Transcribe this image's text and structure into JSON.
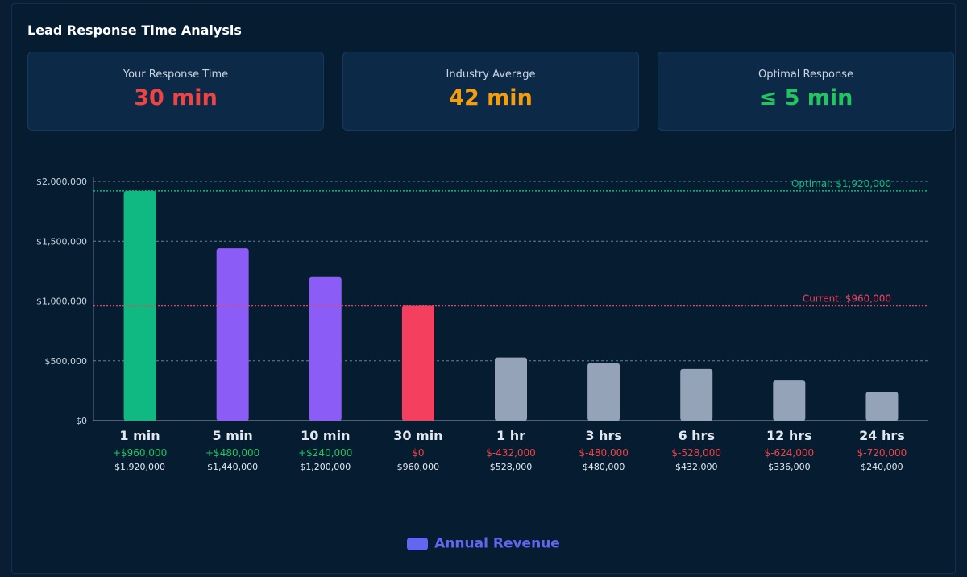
{
  "title": "Lead Response Time Analysis",
  "stats": [
    {
      "label": "Your Response Time",
      "value": "30 min",
      "color": "#ef4444"
    },
    {
      "label": "Industry Average",
      "value": "42 min",
      "color": "#f59e0b"
    },
    {
      "label": "Optimal Response",
      "value": "≤ 5 min",
      "color": "#22c55e"
    }
  ],
  "chart_data": {
    "type": "bar",
    "categories": [
      "1 min",
      "5 min",
      "10 min",
      "30 min",
      "1 hr",
      "3 hrs",
      "6 hrs",
      "12 hrs",
      "24 hrs"
    ],
    "values": [
      1920000,
      1440000,
      1200000,
      960000,
      528000,
      480000,
      432000,
      336000,
      240000
    ],
    "value_labels": [
      "$1,920,000",
      "$1,440,000",
      "$1,200,000",
      "$960,000",
      "$528,000",
      "$480,000",
      "$432,000",
      "$336,000",
      "$240,000"
    ],
    "diffs": [
      "+$960,000",
      "+$480,000",
      "+$240,000",
      "$0",
      "$-432,000",
      "$-480,000",
      "$-528,000",
      "$-624,000",
      "$-720,000"
    ],
    "bar_colors": [
      "#10b981",
      "#8b5cf6",
      "#8b5cf6",
      "#f43f5e",
      "#94a3b8",
      "#94a3b8",
      "#94a3b8",
      "#94a3b8",
      "#94a3b8"
    ],
    "diff_colors": [
      "#22c55e",
      "#22c55e",
      "#22c55e",
      "#ef4444",
      "#ef4444",
      "#ef4444",
      "#ef4444",
      "#ef4444",
      "#ef4444"
    ],
    "ylim": [
      0,
      2000000
    ],
    "yticks": [
      0,
      500000,
      1000000,
      1500000,
      2000000
    ],
    "ytick_labels": [
      "$0",
      "$500,000",
      "$1,000,000",
      "$1,500,000",
      "$2,000,000"
    ],
    "grid": true,
    "reference_lines": [
      {
        "label": "Optimal: $1,920,000",
        "value": 1920000,
        "color": "#10b981"
      },
      {
        "label": "Current: $960,000",
        "value": 960000,
        "color": "#f43f5e"
      }
    ],
    "legend": {
      "label": "Annual Revenue",
      "color": "#6366f1",
      "position": "bottom-center"
    }
  }
}
